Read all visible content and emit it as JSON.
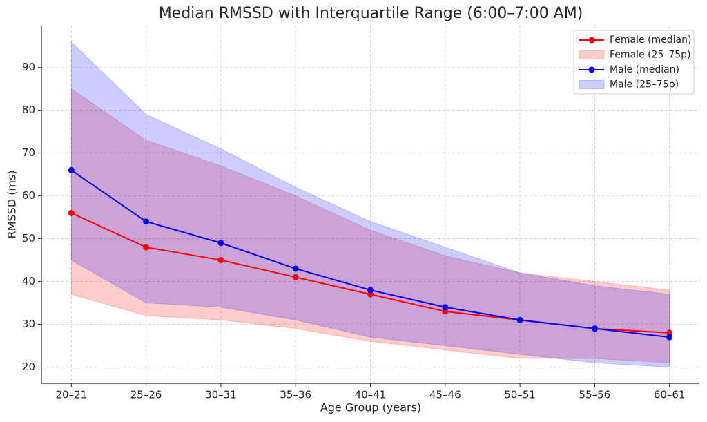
{
  "chart_data": {
    "type": "line",
    "title": "Median RMSSD with Interquartile Range (6:00–7:00 AM)",
    "x_label": "Age Group (years)",
    "y_label": "RMSSD (ms)",
    "categories": [
      "20–21",
      "25–26",
      "30–31",
      "35–36",
      "40–41",
      "45–46",
      "50–51",
      "55–56",
      "60–61"
    ],
    "series": [
      {
        "name": "Female (median)",
        "color": "#ff0000",
        "values": [
          56,
          48,
          45,
          41,
          37,
          33,
          31,
          29,
          28
        ]
      },
      {
        "name": "Female (25–75p)",
        "color": "#ff0000",
        "lower": [
          37,
          32,
          31,
          29,
          26,
          24,
          22,
          22,
          21
        ],
        "upper": [
          85,
          73,
          67,
          60,
          52,
          46,
          42,
          40,
          38
        ]
      },
      {
        "name": "Male (median)",
        "color": "#0000ff",
        "values": [
          66,
          54,
          49,
          43,
          38,
          34,
          31,
          29,
          27
        ]
      },
      {
        "name": "Male (25–75p)",
        "color": "#0000ff",
        "lower": [
          45,
          35,
          34,
          31,
          27,
          25,
          23,
          21,
          20
        ],
        "upper": [
          96,
          79,
          71,
          62,
          54,
          48,
          42,
          39,
          37
        ]
      }
    ],
    "ylim": [
      16.2,
      99.8
    ],
    "yticks": [
      20,
      30,
      40,
      50,
      60,
      70,
      80,
      90
    ],
    "grid": true,
    "legend": "upper right"
  }
}
